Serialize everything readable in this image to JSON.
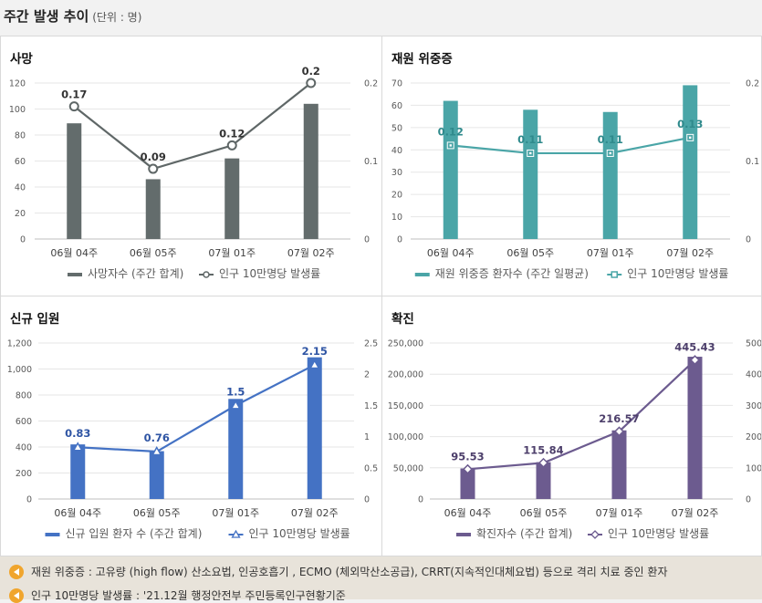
{
  "header": {
    "title": "주간 발생 추이",
    "unit": "(단위 : 명)"
  },
  "notes": [
    "재원 위중증 : 고유량 (high flow) 산소요법, 인공호흡기 , ECMO (체외막산소공급), CRRT(지속적인대체요법) 등으로 격리 치료 중인 환자",
    "인구 10만명당 발생률 : '21.12월 행정안전부 주민등록인구현황기준"
  ],
  "colors": {
    "deaths": "#636c6c",
    "critical": "#4aa5a7",
    "hospitalized": "#4472c4",
    "confirmed": "#6c5b8f"
  },
  "chart_data": [
    {
      "type": "bar",
      "title": "사망",
      "categories": [
        "06월 04주",
        "06월 05주",
        "07월 01주",
        "07월 02주"
      ],
      "series": [
        {
          "name": "사망자수 (주간 합계)",
          "type": "bar",
          "axis": "left",
          "values": [
            89,
            46,
            62,
            104
          ]
        },
        {
          "name": "인구 10만명당 발생률",
          "type": "line",
          "axis": "right",
          "values": [
            0.17,
            0.09,
            0.12,
            0.2
          ],
          "labels": [
            "0.17",
            "0.09",
            "0.12",
            "0.2"
          ],
          "marker": "circle"
        }
      ],
      "ylim": [
        0,
        120
      ],
      "yticks": [
        0,
        20,
        40,
        60,
        80,
        100,
        120
      ],
      "ytick_labels": [
        "0",
        "20",
        "40",
        "60",
        "80",
        "100",
        "120"
      ],
      "y2lim": [
        0,
        0.2
      ],
      "y2ticks": [
        0,
        0.1,
        0.2
      ],
      "y2tick_labels": [
        "0",
        "0.1",
        "0.2"
      ],
      "grid": true,
      "legend": "bottom"
    },
    {
      "type": "bar",
      "title": "재원 위중증",
      "categories": [
        "06월 04주",
        "06월 05주",
        "07월 01주",
        "07월 02주"
      ],
      "series": [
        {
          "name": "재원 위중증 환자수 (주간 일평균)",
          "type": "bar",
          "axis": "left",
          "values": [
            62,
            58,
            57,
            69
          ]
        },
        {
          "name": "인구 10만명당 발생률",
          "type": "line",
          "axis": "right",
          "values": [
            0.12,
            0.11,
            0.11,
            0.13
          ],
          "labels": [
            "0.12",
            "0.11",
            "0.11",
            "0.13"
          ],
          "marker": "square"
        }
      ],
      "ylim": [
        0,
        70
      ],
      "yticks": [
        0,
        10,
        20,
        30,
        40,
        50,
        60,
        70
      ],
      "ytick_labels": [
        "0",
        "10",
        "20",
        "30",
        "40",
        "50",
        "60",
        "70"
      ],
      "y2lim": [
        0,
        0.2
      ],
      "y2ticks": [
        0,
        0.1,
        0.2
      ],
      "y2tick_labels": [
        "0",
        "0.1",
        "0.2"
      ],
      "grid": true,
      "legend": "bottom"
    },
    {
      "type": "bar",
      "title": "신규 입원",
      "categories": [
        "06월 04주",
        "06월 05주",
        "07월 01주",
        "07월 02주"
      ],
      "series": [
        {
          "name": "신규 입원 환자 수 (주간 합계)",
          "type": "bar",
          "axis": "left",
          "values": [
            420,
            368,
            770,
            1090
          ]
        },
        {
          "name": "인구 10만명당 발생률",
          "type": "line",
          "axis": "right",
          "values": [
            0.83,
            0.76,
            1.5,
            2.15
          ],
          "labels": [
            "0.83",
            "0.76",
            "1.5",
            "2.15"
          ],
          "marker": "triangle"
        }
      ],
      "ylim": [
        0,
        1200
      ],
      "yticks": [
        0,
        200,
        400,
        600,
        800,
        1000,
        1200
      ],
      "ytick_labels": [
        "0",
        "200",
        "400",
        "600",
        "800",
        "1,000",
        "1,200"
      ],
      "y2lim": [
        0,
        2.5
      ],
      "y2ticks": [
        0,
        0.5,
        1,
        1.5,
        2,
        2.5
      ],
      "y2tick_labels": [
        "0",
        "0.5",
        "1",
        "1.5",
        "2",
        "2.5"
      ],
      "grid": true,
      "legend": "bottom"
    },
    {
      "type": "bar",
      "title": "확진",
      "categories": [
        "06월 04주",
        "06월 05주",
        "07월 01주",
        "07월 02주"
      ],
      "series": [
        {
          "name": "확진자수 (주간 합계)",
          "type": "bar",
          "axis": "left",
          "values": [
            49000,
            59000,
            110000,
            228000
          ]
        },
        {
          "name": "인구 10만명당 발생률",
          "type": "line",
          "axis": "right",
          "values": [
            95.53,
            115.84,
            216.57,
            445.43
          ],
          "labels": [
            "95.53",
            "115.84",
            "216.57",
            "445.43"
          ],
          "marker": "diamond"
        }
      ],
      "ylim": [
        0,
        250000
      ],
      "yticks": [
        0,
        50000,
        100000,
        150000,
        200000,
        250000
      ],
      "ytick_labels": [
        "0",
        "50,000",
        "100,000",
        "150,000",
        "200,000",
        "250,000"
      ],
      "y2lim": [
        0,
        500
      ],
      "y2ticks": [
        0,
        100,
        200,
        300,
        400,
        500
      ],
      "y2tick_labels": [
        "0",
        "100",
        "200",
        "300",
        "400",
        "500"
      ],
      "grid": true,
      "legend": "bottom"
    }
  ]
}
